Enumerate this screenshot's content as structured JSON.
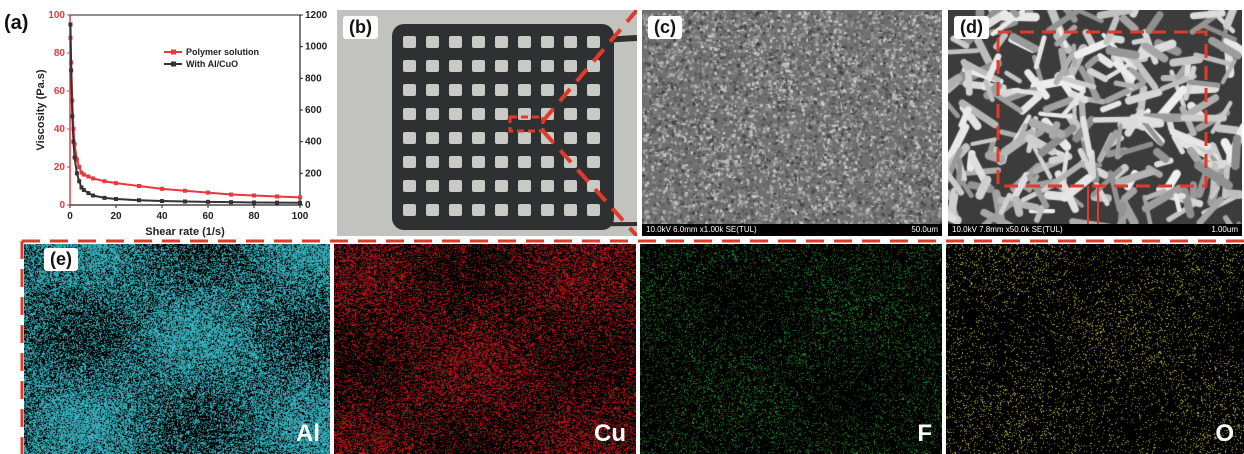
{
  "figure": {
    "labels": {
      "a": "(a)",
      "b": "(b)",
      "c": "(c)",
      "d": "(d)",
      "e": "(e)"
    }
  },
  "chart_data": {
    "type": "line",
    "xlabel": "Shear rate (1/s)",
    "ylabel": "Viscosity (Pa.s)",
    "xlim": [
      0,
      100
    ],
    "ylim_left": [
      0,
      100
    ],
    "ylim_right": [
      0,
      1200
    ],
    "x_ticks": [
      "0",
      "20",
      "40",
      "60",
      "80",
      "100"
    ],
    "y_left_ticks": [
      "0",
      "20",
      "40",
      "60",
      "80",
      "100"
    ],
    "y_right_ticks": [
      "0",
      "200",
      "400",
      "600",
      "800",
      "1000",
      "1200"
    ],
    "legend_position": "top-right",
    "series": [
      {
        "name": "Polymer solution",
        "color": "#e8383d",
        "axis": "left",
        "x": [
          0.2,
          0.5,
          1,
          1.5,
          2,
          3,
          4,
          5,
          6,
          8,
          10,
          15,
          20,
          30,
          40,
          50,
          60,
          70,
          80,
          90,
          100
        ],
        "y": [
          88,
          75,
          55,
          40,
          32,
          24,
          20,
          17,
          16,
          15,
          14,
          12.5,
          11.5,
          10,
          8.5,
          7.5,
          6.5,
          5.5,
          5,
          4.5,
          4
        ]
      },
      {
        "name": "With Al/CuO",
        "color": "#333333",
        "axis": "right",
        "x": [
          0.2,
          0.5,
          1,
          1.5,
          2,
          3,
          4,
          5,
          6,
          8,
          10,
          15,
          20,
          30,
          40,
          50,
          60,
          70,
          80,
          90,
          100
        ],
        "y": [
          1140,
          850,
          560,
          400,
          300,
          200,
          150,
          110,
          95,
          75,
          60,
          45,
          38,
          30,
          25,
          22,
          20,
          18,
          16,
          15,
          14
        ]
      }
    ]
  },
  "sem": {
    "c_caption_left": "10.0kV 6.0mm x1.00k SE(TUL)",
    "c_caption_right": "50.0um",
    "d_caption_left": "10.0kV 7.8mm x50.0k SE(TUL)",
    "d_caption_right": "1.00um"
  },
  "eds": [
    {
      "element": "Al",
      "color": "#3ec8d6"
    },
    {
      "element": "Cu",
      "color": "#d21a1a"
    },
    {
      "element": "F",
      "color": "#1f9a2a"
    },
    {
      "element": "O",
      "color": "#c9c44a"
    }
  ],
  "accent_color": "#e03a2a"
}
